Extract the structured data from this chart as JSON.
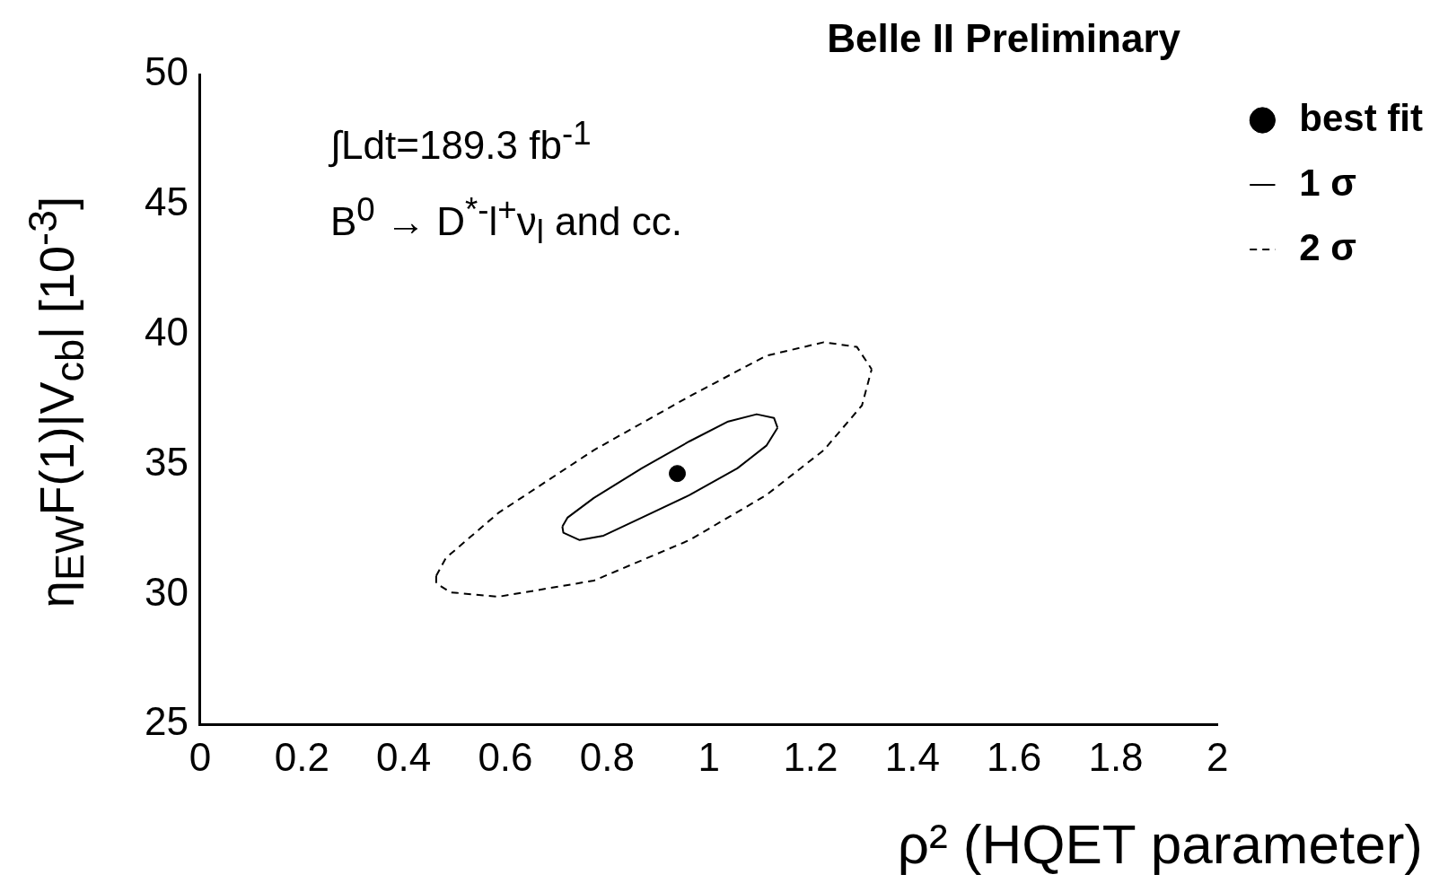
{
  "chart_data": {
    "type": "scatter",
    "title": "Belle II Preliminary",
    "xlabel": "ρ²  (HQET parameter)",
    "ylabel": "η$_{EW}$F(1)|V$_{cb}$| [10$^{-3}$]",
    "annotations": [
      "∫Ldt=189.3 fb$^{-1}$",
      "B$^{0}$ → D$^{*-}$l$^{+}$ν$_{l}$ and cc."
    ],
    "xlim": [
      0,
      2
    ],
    "xticks": [
      0,
      0.2,
      0.4,
      0.6,
      0.8,
      1,
      1.2,
      1.4,
      1.6,
      1.8,
      2
    ],
    "ylim": [
      25,
      50
    ],
    "yticks": [
      25,
      30,
      35,
      40,
      45,
      50
    ],
    "grid": false,
    "legend": "top right",
    "series": [
      {
        "name": "best fit",
        "type": "scatter",
        "marker": "circle",
        "color": "#000000",
        "x": [
          0.938
        ],
        "values": [
          34.65
        ]
      },
      {
        "name": "1 σ",
        "type": "line",
        "marker": "none",
        "line_style": "solid",
        "color": "#000000",
        "x": [
          0.712,
          0.722,
          0.774,
          0.868,
          0.962,
          1.038,
          1.094,
          1.128,
          1.135
        ],
        "values": [
          32.61,
          32.95,
          33.71,
          34.85,
          35.89,
          36.65,
          36.93,
          36.79,
          36.41
        ]
      },
      {
        "type": "line",
        "marker": "none",
        "line_style": "solid",
        "color": "#000000",
        "x": [
          0.712,
          0.714,
          0.746,
          0.793,
          0.868,
          0.962,
          1.056,
          1.113,
          1.135
        ],
        "values": [
          32.61,
          32.37,
          32.09,
          32.26,
          32.95,
          33.82,
          34.85,
          35.72,
          36.41
        ]
      },
      {
        "name": "2 σ",
        "type": "line",
        "marker": "none",
        "line_style": "dashed",
        "color": "#000000",
        "x": [
          0.464,
          0.483,
          0.586,
          0.774,
          0.962,
          1.113,
          1.226,
          1.291,
          1.32
        ],
        "values": [
          30.71,
          31.4,
          33.13,
          35.55,
          37.62,
          39.18,
          39.7,
          39.52,
          38.66
        ]
      },
      {
        "type": "line",
        "marker": "none",
        "line_style": "dashed",
        "color": "#000000",
        "x": [
          0.464,
          0.464,
          0.492,
          0.586,
          0.774,
          0.962,
          1.113,
          1.226,
          1.301,
          1.32
        ],
        "values": [
          30.71,
          30.43,
          30.08,
          29.91,
          30.53,
          32.09,
          33.82,
          35.55,
          37.27,
          38.66
        ]
      }
    ]
  }
}
